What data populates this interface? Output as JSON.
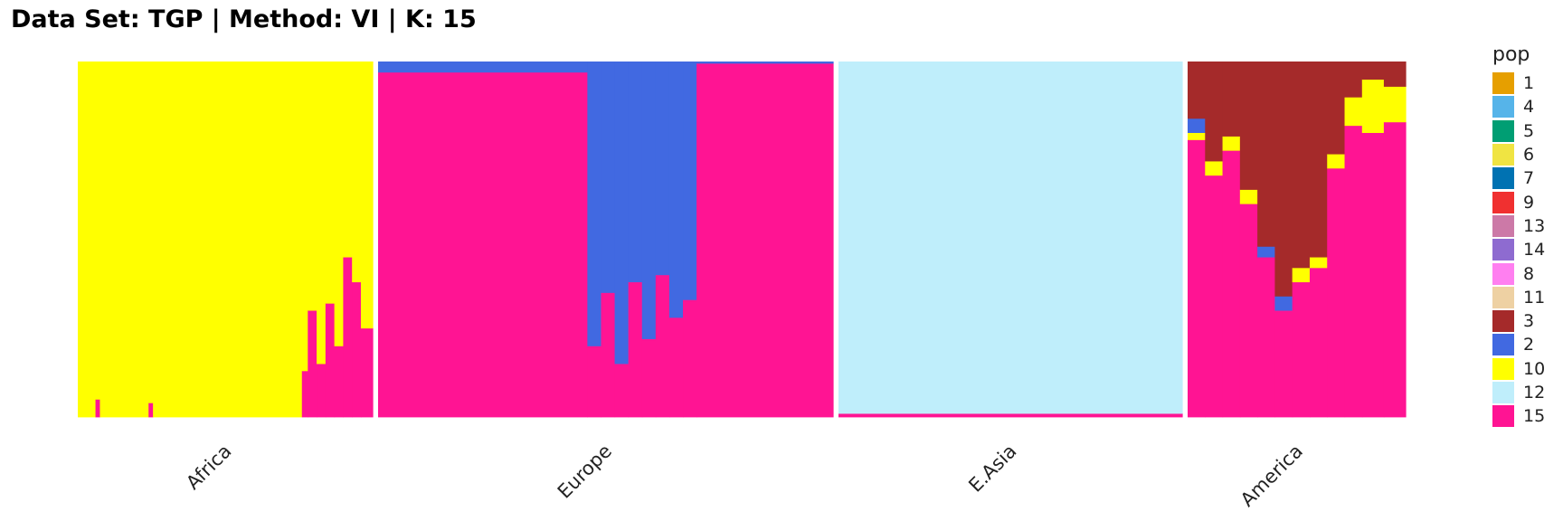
{
  "chart_data": {
    "type": "bar",
    "subtype": "stacked-admixture",
    "title": "Data Set: TGP | Method: VI | K: 15",
    "legend": {
      "title": "pop",
      "placement": "right",
      "entries": [
        {
          "name": "1",
          "color": "#E69F00"
        },
        {
          "name": "4",
          "color": "#56B4E9"
        },
        {
          "name": "5",
          "color": "#009E73"
        },
        {
          "name": "6",
          "color": "#F0E442"
        },
        {
          "name": "7",
          "color": "#0072B2"
        },
        {
          "name": "9",
          "color": "#F03030"
        },
        {
          "name": "13",
          "color": "#CC79A7"
        },
        {
          "name": "14",
          "color": "#8E6BD0"
        },
        {
          "name": "8",
          "color": "#FF7FF0"
        },
        {
          "name": "11",
          "color": "#EED1A3"
        },
        {
          "name": "3",
          "color": "#A52A2A"
        },
        {
          "name": "2",
          "color": "#4169E1"
        },
        {
          "name": "10",
          "color": "#FFFF00"
        },
        {
          "name": "12",
          "color": "#BFEEFB"
        },
        {
          "name": "15",
          "color": "#FF1493"
        }
      ]
    },
    "ylim": [
      0,
      1
    ],
    "grid": false,
    "groups": [
      {
        "name": "Africa",
        "segments": [
          {
            "x": [
              0.0,
              0.06
            ],
            "values": {
              "10": 1.0
            }
          },
          {
            "x": [
              0.06,
              0.075
            ],
            "values": {
              "10": 0.95,
              "15": 0.05
            }
          },
          {
            "x": [
              0.075,
              0.24
            ],
            "values": {
              "10": 1.0
            }
          },
          {
            "x": [
              0.24,
              0.255
            ],
            "values": {
              "10": 0.96,
              "15": 0.04
            }
          },
          {
            "x": [
              0.255,
              0.76
            ],
            "values": {
              "10": 1.0
            }
          },
          {
            "x": [
              0.76,
              0.78
            ],
            "values": {
              "10": 0.87,
              "15": 0.13
            }
          },
          {
            "x": [
              0.78,
              0.81
            ],
            "values": {
              "10": 0.7,
              "15": 0.3
            }
          },
          {
            "x": [
              0.81,
              0.84
            ],
            "values": {
              "10": 0.85,
              "15": 0.15
            }
          },
          {
            "x": [
              0.84,
              0.87
            ],
            "values": {
              "10": 0.68,
              "15": 0.32
            }
          },
          {
            "x": [
              0.87,
              0.9
            ],
            "values": {
              "10": 0.8,
              "15": 0.2
            }
          },
          {
            "x": [
              0.9,
              0.93
            ],
            "values": {
              "10": 0.55,
              "15": 0.45
            }
          },
          {
            "x": [
              0.93,
              0.96
            ],
            "values": {
              "10": 0.62,
              "15": 0.38
            }
          },
          {
            "x": [
              0.96,
              1.0
            ],
            "values": {
              "10": 0.75,
              "15": 0.25
            }
          }
        ]
      },
      {
        "name": "Europe",
        "segments": [
          {
            "x": [
              0.0,
              0.46
            ],
            "values": {
              "15": 0.97,
              "2": 0.03
            }
          },
          {
            "x": [
              0.46,
              0.49
            ],
            "values": {
              "15": 0.2,
              "2": 0.8
            }
          },
          {
            "x": [
              0.49,
              0.52
            ],
            "values": {
              "15": 0.35,
              "2": 0.65
            }
          },
          {
            "x": [
              0.52,
              0.55
            ],
            "values": {
              "15": 0.15,
              "2": 0.85
            }
          },
          {
            "x": [
              0.55,
              0.58
            ],
            "values": {
              "15": 0.38,
              "2": 0.62
            }
          },
          {
            "x": [
              0.58,
              0.61
            ],
            "values": {
              "15": 0.22,
              "2": 0.78
            }
          },
          {
            "x": [
              0.61,
              0.64
            ],
            "values": {
              "15": 0.4,
              "2": 0.6
            }
          },
          {
            "x": [
              0.64,
              0.67
            ],
            "values": {
              "15": 0.28,
              "2": 0.72
            }
          },
          {
            "x": [
              0.67,
              0.7
            ],
            "values": {
              "15": 0.33,
              "2": 0.67
            }
          },
          {
            "x": [
              0.7,
              1.0
            ],
            "values": {
              "15": 0.995,
              "2": 0.005
            }
          }
        ]
      },
      {
        "name": "E.Asia",
        "segments": [
          {
            "x": [
              0.0,
              1.0
            ],
            "values": {
              "12": 0.99,
              "15": 0.01
            }
          }
        ]
      },
      {
        "name": "America",
        "segments": [
          {
            "x": [
              0.0,
              0.08
            ],
            "values": {
              "15": 0.78,
              "3": 0.16,
              "2": 0.04,
              "10": 0.02
            }
          },
          {
            "x": [
              0.08,
              0.16
            ],
            "values": {
              "15": 0.68,
              "3": 0.28,
              "10": 0.04
            }
          },
          {
            "x": [
              0.16,
              0.24
            ],
            "values": {
              "15": 0.75,
              "3": 0.21,
              "10": 0.04
            }
          },
          {
            "x": [
              0.24,
              0.32
            ],
            "values": {
              "15": 0.6,
              "3": 0.36,
              "10": 0.04
            }
          },
          {
            "x": [
              0.32,
              0.4
            ],
            "values": {
              "15": 0.45,
              "3": 0.52,
              "2": 0.03
            }
          },
          {
            "x": [
              0.4,
              0.48
            ],
            "values": {
              "15": 0.3,
              "3": 0.66,
              "2": 0.04
            }
          },
          {
            "x": [
              0.48,
              0.56
            ],
            "values": {
              "15": 0.38,
              "3": 0.58,
              "10": 0.04
            }
          },
          {
            "x": [
              0.56,
              0.64
            ],
            "values": {
              "15": 0.42,
              "3": 0.55,
              "10": 0.03
            }
          },
          {
            "x": [
              0.64,
              0.72
            ],
            "values": {
              "15": 0.7,
              "3": 0.26,
              "10": 0.04
            }
          },
          {
            "x": [
              0.72,
              0.8
            ],
            "values": {
              "15": 0.82,
              "3": 0.1,
              "10": 0.08
            }
          },
          {
            "x": [
              0.8,
              0.9
            ],
            "values": {
              "15": 0.8,
              "3": 0.05,
              "10": 0.15
            }
          },
          {
            "x": [
              0.9,
              1.0
            ],
            "values": {
              "15": 0.83,
              "3": 0.07,
              "10": 0.1
            }
          }
        ]
      }
    ]
  }
}
